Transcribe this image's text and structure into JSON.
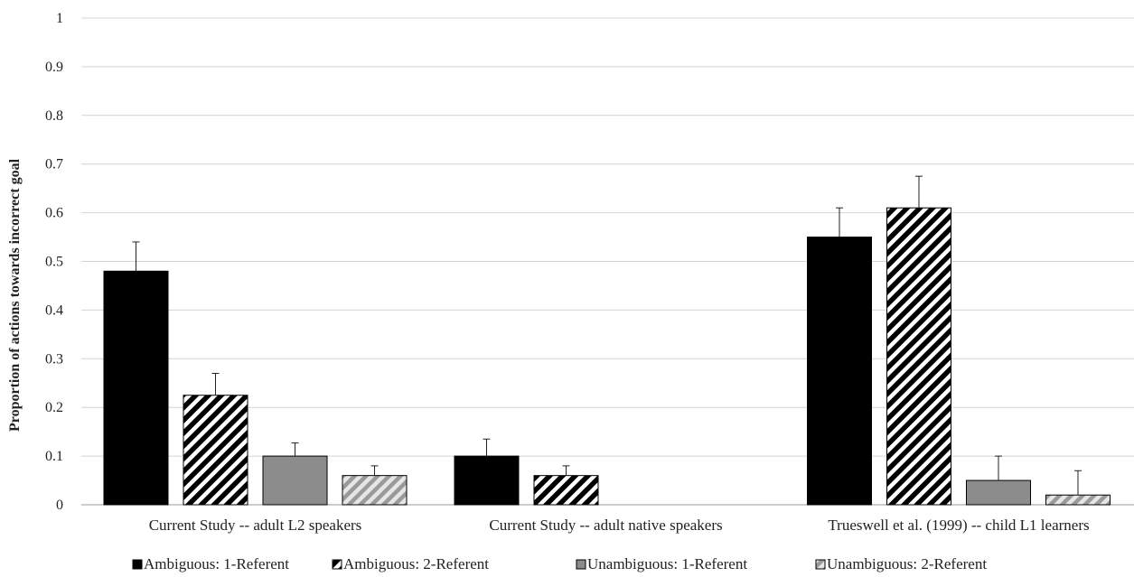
{
  "chart_data": {
    "type": "bar",
    "title": "",
    "ylabel": "Proportion of actions towards incorrect goal",
    "xlabel": "",
    "ylim": [
      0,
      1
    ],
    "yticks": [
      0,
      0.1,
      0.2,
      0.3,
      0.4,
      0.5,
      0.6,
      0.7,
      0.8,
      0.9,
      1
    ],
    "ytick_labels": [
      "0",
      "0.1",
      "0.2",
      "0.3",
      "0.4",
      "0.5",
      "0.6",
      "0.7",
      "0.8",
      "0.9",
      "1"
    ],
    "grid": true,
    "legend_position": "bottom",
    "categories": [
      "Current Study -- adult L2 speakers",
      "Current Study -- adult native speakers",
      "Trueswell et al. (1999) -- child L1 learners"
    ],
    "series": [
      {
        "name": "Ambiguous: 1-Referent",
        "values": [
          0.48,
          0.1,
          0.55
        ],
        "errors": [
          0.06,
          0.035,
          0.06
        ],
        "fill": "#000000",
        "pattern": "solid"
      },
      {
        "name": "Ambiguous: 2-Referent",
        "values": [
          0.225,
          0.06,
          0.61
        ],
        "errors": [
          0.045,
          0.02,
          0.065
        ],
        "fill": "#000000",
        "pattern": "hatch-black"
      },
      {
        "name": "Unambiguous: 1-Referent",
        "values": [
          0.1,
          null,
          0.05
        ],
        "errors": [
          0.027,
          null,
          0.05
        ],
        "fill": "#8c8c8c",
        "pattern": "solid"
      },
      {
        "name": "Unambiguous: 2-Referent",
        "values": [
          0.06,
          null,
          0.02
        ],
        "errors": [
          0.02,
          null,
          0.05
        ],
        "fill": "#a6a6a6",
        "pattern": "hatch-gray"
      }
    ]
  }
}
